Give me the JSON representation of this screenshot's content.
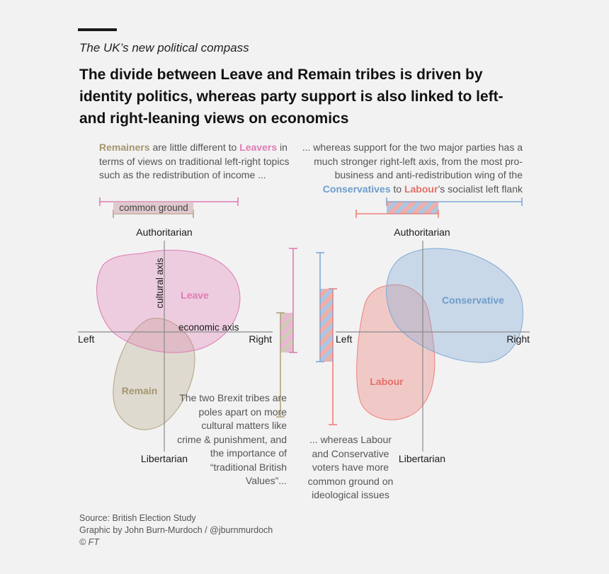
{
  "kicker": "The UK’s new political compass",
  "headline": "The divide between Leave and Remain tribes is driven by identity politics, whereas party support is also linked to left- and right-leaning views on economics",
  "notes": {
    "top_left": {
      "remainers": "Remainers",
      "t1": " are little different to ",
      "leavers": "Leavers",
      "t2": " in terms of views on traditional left-right topics such as the redistribution of income ..."
    },
    "top_right": {
      "t1": "... whereas support for the two major parties has a much stronger right-left axis, from the most pro-business and anti-redistribution wing of the ",
      "conservatives": "Conservatives",
      "t2": " to ",
      "labour": "Labour",
      "t3": "’s socialist left flank"
    },
    "bottom_left": "The two Brexit tribes are poles apart on more cultural matters like crime & punishment, and the importance of “traditional British Values”...",
    "bottom_right": "... whereas Labour and Conservative voters have more common ground on ideological issues"
  },
  "labels": {
    "common_ground": "common ground",
    "authoritarian": "Authoritarian",
    "libertarian": "Libertarian",
    "left": "Left",
    "right": "Right",
    "cultural_axis": "cultural axis",
    "economic_axis": "economic axis"
  },
  "groups": {
    "leave": "Leave",
    "remain": "Remain",
    "conservative": "Conservative",
    "labour": "Labour"
  },
  "colors": {
    "leave": "#e07bb5",
    "remain": "#b2a37f",
    "conservative": "#7fa9d6",
    "labour": "#ef7f78",
    "axis": "#8a8a8a"
  },
  "source": {
    "line1": "Source: British Election Study",
    "line2": "Graphic by John Burn-Murdoch / @jburnmurdoch",
    "line3": "© FT"
  }
}
